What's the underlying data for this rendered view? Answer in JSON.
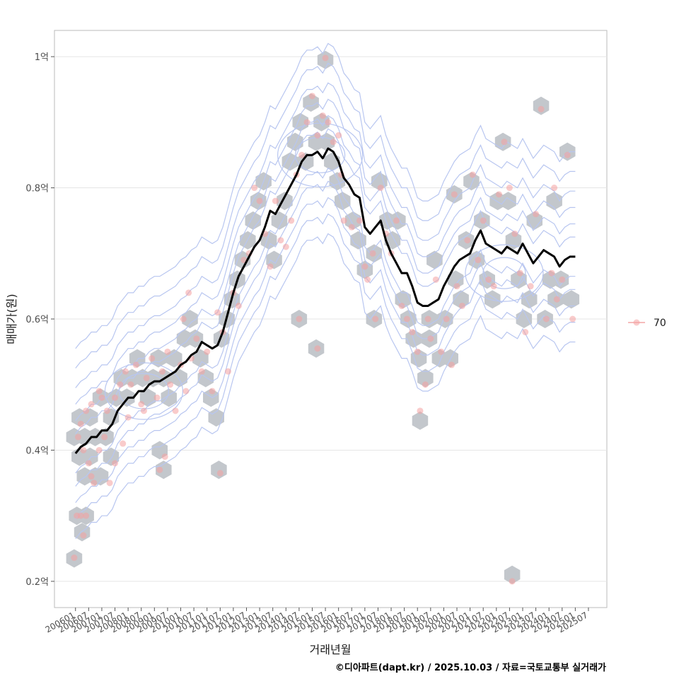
{
  "chart_data": {
    "type": "scatter",
    "title": "",
    "xlabel": "거래년월",
    "ylabel": "매매가(원)",
    "caption": "©디아파트(dapt.kr) / 2025.10.03 / 자료=국토교통부 실거래가",
    "legend": {
      "label": "70",
      "placement": "right"
    },
    "ylim": [
      0.16,
      1.04
    ],
    "xlim": [
      2005.2,
      2026.2
    ],
    "y_ticks": [
      {
        "v": 0.2,
        "label": "0.2억"
      },
      {
        "v": 0.4,
        "label": "0.4억"
      },
      {
        "v": 0.6,
        "label": "0.6억"
      },
      {
        "v": 0.8,
        "label": "0.8억"
      },
      {
        "v": 1.0,
        "label": "1억"
      }
    ],
    "x_ticks": [
      {
        "v": 2006.0,
        "label": "200601"
      },
      {
        "v": 2006.5,
        "label": "200607"
      },
      {
        "v": 2007.0,
        "label": "200701"
      },
      {
        "v": 2007.5,
        "label": "200707"
      },
      {
        "v": 2008.0,
        "label": "200801"
      },
      {
        "v": 2008.5,
        "label": "200807"
      },
      {
        "v": 2009.0,
        "label": "200901"
      },
      {
        "v": 2009.5,
        "label": "200907"
      },
      {
        "v": 2010.0,
        "label": "201001"
      },
      {
        "v": 2010.5,
        "label": "201007"
      },
      {
        "v": 2011.0,
        "label": "201101"
      },
      {
        "v": 2011.5,
        "label": "201107"
      },
      {
        "v": 2012.0,
        "label": "201201"
      },
      {
        "v": 2012.5,
        "label": "201207"
      },
      {
        "v": 2013.0,
        "label": "201301"
      },
      {
        "v": 2013.5,
        "label": "201307"
      },
      {
        "v": 2014.0,
        "label": "201401"
      },
      {
        "v": 2014.5,
        "label": "201407"
      },
      {
        "v": 2015.0,
        "label": "201501"
      },
      {
        "v": 2015.5,
        "label": "201507"
      },
      {
        "v": 2016.0,
        "label": "201601"
      },
      {
        "v": 2016.5,
        "label": "201607"
      },
      {
        "v": 2017.0,
        "label": "201701"
      },
      {
        "v": 2017.5,
        "label": "201707"
      },
      {
        "v": 2018.0,
        "label": "201801"
      },
      {
        "v": 2018.5,
        "label": "201807"
      },
      {
        "v": 2019.0,
        "label": "201901"
      },
      {
        "v": 2019.5,
        "label": "201907"
      },
      {
        "v": 2020.0,
        "label": "202001"
      },
      {
        "v": 2020.5,
        "label": "202007"
      },
      {
        "v": 2021.0,
        "label": "202101"
      },
      {
        "v": 2021.5,
        "label": "202107"
      },
      {
        "v": 2022.0,
        "label": "202201"
      },
      {
        "v": 2022.5,
        "label": "202207"
      },
      {
        "v": 2023.0,
        "label": "202301"
      },
      {
        "v": 2023.5,
        "label": "202307"
      },
      {
        "v": 2024.0,
        "label": "202401"
      },
      {
        "v": 2024.5,
        "label": "202407"
      },
      {
        "v": 2025.0,
        "label": "202501"
      },
      {
        "v": 2025.5,
        "label": "202507"
      }
    ],
    "trend_line": {
      "name": "moving average",
      "points": [
        [
          2006.0,
          0.395
        ],
        [
          2006.2,
          0.405
        ],
        [
          2006.4,
          0.41
        ],
        [
          2006.6,
          0.42
        ],
        [
          2006.8,
          0.42
        ],
        [
          2007.0,
          0.43
        ],
        [
          2007.2,
          0.43
        ],
        [
          2007.4,
          0.44
        ],
        [
          2007.6,
          0.46
        ],
        [
          2007.8,
          0.47
        ],
        [
          2008.0,
          0.48
        ],
        [
          2008.2,
          0.48
        ],
        [
          2008.4,
          0.49
        ],
        [
          2008.6,
          0.49
        ],
        [
          2008.8,
          0.5
        ],
        [
          2009.0,
          0.505
        ],
        [
          2009.2,
          0.505
        ],
        [
          2009.4,
          0.51
        ],
        [
          2009.6,
          0.515
        ],
        [
          2009.8,
          0.52
        ],
        [
          2010.0,
          0.53
        ],
        [
          2010.2,
          0.535
        ],
        [
          2010.4,
          0.545
        ],
        [
          2010.6,
          0.55
        ],
        [
          2010.8,
          0.565
        ],
        [
          2011.0,
          0.56
        ],
        [
          2011.2,
          0.555
        ],
        [
          2011.4,
          0.56
        ],
        [
          2011.6,
          0.58
        ],
        [
          2011.8,
          0.61
        ],
        [
          2012.0,
          0.64
        ],
        [
          2012.2,
          0.665
        ],
        [
          2012.4,
          0.68
        ],
        [
          2012.6,
          0.695
        ],
        [
          2012.8,
          0.71
        ],
        [
          2013.0,
          0.72
        ],
        [
          2013.2,
          0.74
        ],
        [
          2013.4,
          0.765
        ],
        [
          2013.6,
          0.76
        ],
        [
          2013.8,
          0.775
        ],
        [
          2014.0,
          0.79
        ],
        [
          2014.2,
          0.805
        ],
        [
          2014.4,
          0.82
        ],
        [
          2014.6,
          0.84
        ],
        [
          2014.8,
          0.85
        ],
        [
          2015.0,
          0.85
        ],
        [
          2015.2,
          0.855
        ],
        [
          2015.4,
          0.845
        ],
        [
          2015.6,
          0.86
        ],
        [
          2015.8,
          0.855
        ],
        [
          2016.0,
          0.84
        ],
        [
          2016.2,
          0.815
        ],
        [
          2016.4,
          0.805
        ],
        [
          2016.6,
          0.79
        ],
        [
          2016.8,
          0.785
        ],
        [
          2017.0,
          0.74
        ],
        [
          2017.2,
          0.73
        ],
        [
          2017.4,
          0.74
        ],
        [
          2017.6,
          0.75
        ],
        [
          2017.8,
          0.72
        ],
        [
          2018.0,
          0.7
        ],
        [
          2018.2,
          0.685
        ],
        [
          2018.4,
          0.67
        ],
        [
          2018.6,
          0.67
        ],
        [
          2018.8,
          0.65
        ],
        [
          2019.0,
          0.625
        ],
        [
          2019.2,
          0.62
        ],
        [
          2019.4,
          0.62
        ],
        [
          2019.6,
          0.625
        ],
        [
          2019.8,
          0.63
        ],
        [
          2020.0,
          0.65
        ],
        [
          2020.2,
          0.665
        ],
        [
          2020.4,
          0.68
        ],
        [
          2020.6,
          0.69
        ],
        [
          2020.8,
          0.695
        ],
        [
          2021.0,
          0.7
        ],
        [
          2021.2,
          0.72
        ],
        [
          2021.4,
          0.735
        ],
        [
          2021.6,
          0.715
        ],
        [
          2021.8,
          0.71
        ],
        [
          2022.0,
          0.705
        ],
        [
          2022.2,
          0.7
        ],
        [
          2022.4,
          0.71
        ],
        [
          2022.6,
          0.705
        ],
        [
          2022.8,
          0.7
        ],
        [
          2023.0,
          0.715
        ],
        [
          2023.2,
          0.7
        ],
        [
          2023.4,
          0.685
        ],
        [
          2023.6,
          0.695
        ],
        [
          2023.8,
          0.705
        ],
        [
          2024.0,
          0.7
        ],
        [
          2024.2,
          0.695
        ],
        [
          2024.4,
          0.68
        ],
        [
          2024.6,
          0.69
        ],
        [
          2024.8,
          0.695
        ],
        [
          2025.0,
          0.695
        ]
      ]
    },
    "points": [
      [
        2005.95,
        0.236
      ],
      [
        2006.05,
        0.3
      ],
      [
        2006.2,
        0.3
      ],
      [
        2006.3,
        0.27
      ],
      [
        2006.4,
        0.3
      ],
      [
        2006.1,
        0.42
      ],
      [
        2006.2,
        0.44
      ],
      [
        2006.3,
        0.4
      ],
      [
        2006.5,
        0.38
      ],
      [
        2006.6,
        0.36
      ],
      [
        2006.7,
        0.35
      ],
      [
        2006.9,
        0.4
      ],
      [
        2007.1,
        0.42
      ],
      [
        2007.3,
        0.35
      ],
      [
        2007.5,
        0.38
      ],
      [
        2006.4,
        0.46
      ],
      [
        2006.6,
        0.47
      ],
      [
        2006.9,
        0.49
      ],
      [
        2007.2,
        0.46
      ],
      [
        2007.5,
        0.48
      ],
      [
        2007.7,
        0.5
      ],
      [
        2007.9,
        0.52
      ],
      [
        2008.1,
        0.5
      ],
      [
        2008.3,
        0.53
      ],
      [
        2008.5,
        0.47
      ],
      [
        2008.7,
        0.51
      ],
      [
        2008.9,
        0.54
      ],
      [
        2009.1,
        0.48
      ],
      [
        2009.3,
        0.52
      ],
      [
        2009.5,
        0.55
      ],
      [
        2009.6,
        0.5
      ],
      [
        2009.8,
        0.46
      ],
      [
        2010.0,
        0.53
      ],
      [
        2010.2,
        0.49
      ],
      [
        2010.4,
        0.54
      ],
      [
        2009.2,
        0.37
      ],
      [
        2009.4,
        0.39
      ],
      [
        2010.1,
        0.6
      ],
      [
        2010.3,
        0.64
      ],
      [
        2010.6,
        0.57
      ],
      [
        2010.8,
        0.52
      ],
      [
        2011.0,
        0.55
      ],
      [
        2011.2,
        0.49
      ],
      [
        2011.4,
        0.61
      ],
      [
        2011.6,
        0.58
      ],
      [
        2011.8,
        0.52
      ],
      [
        2011.5,
        0.365
      ],
      [
        2012.0,
        0.64
      ],
      [
        2012.2,
        0.62
      ],
      [
        2012.4,
        0.69
      ],
      [
        2012.6,
        0.7
      ],
      [
        2012.8,
        0.8
      ],
      [
        2013.0,
        0.78
      ],
      [
        2013.2,
        0.73
      ],
      [
        2013.4,
        0.68
      ],
      [
        2013.6,
        0.78
      ],
      [
        2013.8,
        0.72
      ],
      [
        2014.0,
        0.71
      ],
      [
        2014.2,
        0.75
      ],
      [
        2014.4,
        0.82
      ],
      [
        2014.6,
        0.85
      ],
      [
        2014.8,
        0.9
      ],
      [
        2015.0,
        0.94
      ],
      [
        2015.2,
        0.88
      ],
      [
        2015.4,
        0.91
      ],
      [
        2015.6,
        0.9
      ],
      [
        2015.8,
        0.87
      ],
      [
        2016.0,
        0.88
      ],
      [
        2016.1,
        0.82
      ],
      [
        2016.2,
        0.75
      ],
      [
        2015.5,
        0.998
      ],
      [
        2015.2,
        0.555
      ],
      [
        2014.5,
        0.6
      ],
      [
        2016.5,
        0.74
      ],
      [
        2016.8,
        0.75
      ],
      [
        2017.0,
        0.68
      ],
      [
        2017.1,
        0.66
      ],
      [
        2017.3,
        0.7
      ],
      [
        2017.4,
        0.6
      ],
      [
        2017.6,
        0.8
      ],
      [
        2017.8,
        0.73
      ],
      [
        2018.0,
        0.7
      ],
      [
        2018.2,
        0.75
      ],
      [
        2018.4,
        0.62
      ],
      [
        2018.6,
        0.6
      ],
      [
        2018.8,
        0.58
      ],
      [
        2019.0,
        0.55
      ],
      [
        2019.1,
        0.46
      ],
      [
        2019.3,
        0.5
      ],
      [
        2019.5,
        0.57
      ],
      [
        2019.7,
        0.66
      ],
      [
        2019.9,
        0.55
      ],
      [
        2020.1,
        0.6
      ],
      [
        2020.3,
        0.53
      ],
      [
        2020.5,
        0.65
      ],
      [
        2020.7,
        0.62
      ],
      [
        2020.9,
        0.72
      ],
      [
        2021.1,
        0.82
      ],
      [
        2021.3,
        0.69
      ],
      [
        2021.5,
        0.75
      ],
      [
        2021.7,
        0.66
      ],
      [
        2021.9,
        0.65
      ],
      [
        2022.1,
        0.79
      ],
      [
        2022.3,
        0.87
      ],
      [
        2022.5,
        0.8
      ],
      [
        2022.7,
        0.73
      ],
      [
        2022.9,
        0.67
      ],
      [
        2023.1,
        0.58
      ],
      [
        2023.3,
        0.65
      ],
      [
        2023.5,
        0.76
      ],
      [
        2023.7,
        0.92
      ],
      [
        2023.9,
        0.6
      ],
      [
        2024.1,
        0.67
      ],
      [
        2024.3,
        0.63
      ],
      [
        2024.5,
        0.66
      ],
      [
        2024.7,
        0.85
      ],
      [
        2024.9,
        0.6
      ],
      [
        2022.6,
        0.2
      ],
      [
        2024.2,
        0.8
      ],
      [
        2020.4,
        0.79
      ],
      [
        2019.4,
        0.6
      ],
      [
        2008.0,
        0.45
      ],
      [
        2008.6,
        0.46
      ],
      [
        2007.0,
        0.48
      ],
      [
        2007.8,
        0.41
      ]
    ],
    "hex_bins": [
      [
        2005.95,
        0.235
      ],
      [
        2006.05,
        0.3
      ],
      [
        2006.4,
        0.3
      ],
      [
        2006.25,
        0.275
      ],
      [
        2005.95,
        0.42
      ],
      [
        2006.15,
        0.45
      ],
      [
        2006.35,
        0.42
      ],
      [
        2006.55,
        0.45
      ],
      [
        2006.15,
        0.39
      ],
      [
        2006.55,
        0.39
      ],
      [
        2006.75,
        0.36
      ],
      [
        2006.95,
        0.36
      ],
      [
        2006.35,
        0.36
      ],
      [
        2006.75,
        0.42
      ],
      [
        2006.95,
        0.48
      ],
      [
        2007.15,
        0.42
      ],
      [
        2007.35,
        0.39
      ],
      [
        2007.35,
        0.45
      ],
      [
        2007.55,
        0.48
      ],
      [
        2007.75,
        0.51
      ],
      [
        2007.95,
        0.48
      ],
      [
        2008.15,
        0.51
      ],
      [
        2008.35,
        0.54
      ],
      [
        2008.55,
        0.51
      ],
      [
        2008.75,
        0.48
      ],
      [
        2008.95,
        0.51
      ],
      [
        2009.15,
        0.54
      ],
      [
        2009.35,
        0.51
      ],
      [
        2009.55,
        0.48
      ],
      [
        2009.75,
        0.54
      ],
      [
        2009.95,
        0.51
      ],
      [
        2010.15,
        0.57
      ],
      [
        2010.35,
        0.6
      ],
      [
        2010.55,
        0.57
      ],
      [
        2010.75,
        0.54
      ],
      [
        2010.95,
        0.51
      ],
      [
        2011.15,
        0.48
      ],
      [
        2011.35,
        0.45
      ],
      [
        2011.55,
        0.57
      ],
      [
        2011.75,
        0.6
      ],
      [
        2009.2,
        0.4
      ],
      [
        2009.35,
        0.37
      ],
      [
        2011.45,
        0.37
      ],
      [
        2011.95,
        0.63
      ],
      [
        2012.15,
        0.66
      ],
      [
        2012.35,
        0.69
      ],
      [
        2012.55,
        0.72
      ],
      [
        2012.75,
        0.75
      ],
      [
        2012.95,
        0.78
      ],
      [
        2013.15,
        0.81
      ],
      [
        2013.35,
        0.72
      ],
      [
        2013.55,
        0.69
      ],
      [
        2013.75,
        0.75
      ],
      [
        2013.95,
        0.78
      ],
      [
        2014.15,
        0.84
      ],
      [
        2014.35,
        0.87
      ],
      [
        2014.55,
        0.9
      ],
      [
        2014.75,
        0.84
      ],
      [
        2014.95,
        0.93
      ],
      [
        2015.15,
        0.87
      ],
      [
        2015.35,
        0.9
      ],
      [
        2015.55,
        0.87
      ],
      [
        2015.75,
        0.84
      ],
      [
        2015.95,
        0.81
      ],
      [
        2016.15,
        0.78
      ],
      [
        2015.5,
        0.995
      ],
      [
        2015.15,
        0.555
      ],
      [
        2014.5,
        0.6
      ],
      [
        2016.55,
        0.75
      ],
      [
        2016.75,
        0.72
      ],
      [
        2017.0,
        0.675
      ],
      [
        2017.35,
        0.7
      ],
      [
        2017.35,
        0.6
      ],
      [
        2017.55,
        0.81
      ],
      [
        2017.85,
        0.75
      ],
      [
        2018.05,
        0.72
      ],
      [
        2018.25,
        0.75
      ],
      [
        2018.45,
        0.63
      ],
      [
        2018.65,
        0.6
      ],
      [
        2018.85,
        0.57
      ],
      [
        2019.05,
        0.54
      ],
      [
        2019.1,
        0.445
      ],
      [
        2019.3,
        0.51
      ],
      [
        2019.45,
        0.57
      ],
      [
        2019.65,
        0.69
      ],
      [
        2019.85,
        0.54
      ],
      [
        2020.05,
        0.6
      ],
      [
        2020.25,
        0.54
      ],
      [
        2020.45,
        0.66
      ],
      [
        2020.65,
        0.63
      ],
      [
        2020.85,
        0.72
      ],
      [
        2021.05,
        0.81
      ],
      [
        2021.25,
        0.69
      ],
      [
        2021.45,
        0.75
      ],
      [
        2021.65,
        0.66
      ],
      [
        2021.85,
        0.63
      ],
      [
        2022.05,
        0.78
      ],
      [
        2022.25,
        0.87
      ],
      [
        2022.45,
        0.78
      ],
      [
        2022.65,
        0.72
      ],
      [
        2022.85,
        0.66
      ],
      [
        2023.05,
        0.6
      ],
      [
        2023.25,
        0.63
      ],
      [
        2023.45,
        0.75
      ],
      [
        2023.7,
        0.925
      ],
      [
        2023.85,
        0.6
      ],
      [
        2024.05,
        0.66
      ],
      [
        2024.25,
        0.63
      ],
      [
        2024.45,
        0.66
      ],
      [
        2024.7,
        0.855
      ],
      [
        2024.85,
        0.63
      ],
      [
        2022.6,
        0.21
      ],
      [
        2024.2,
        0.78
      ],
      [
        2020.4,
        0.79
      ],
      [
        2019.45,
        0.6
      ]
    ]
  }
}
